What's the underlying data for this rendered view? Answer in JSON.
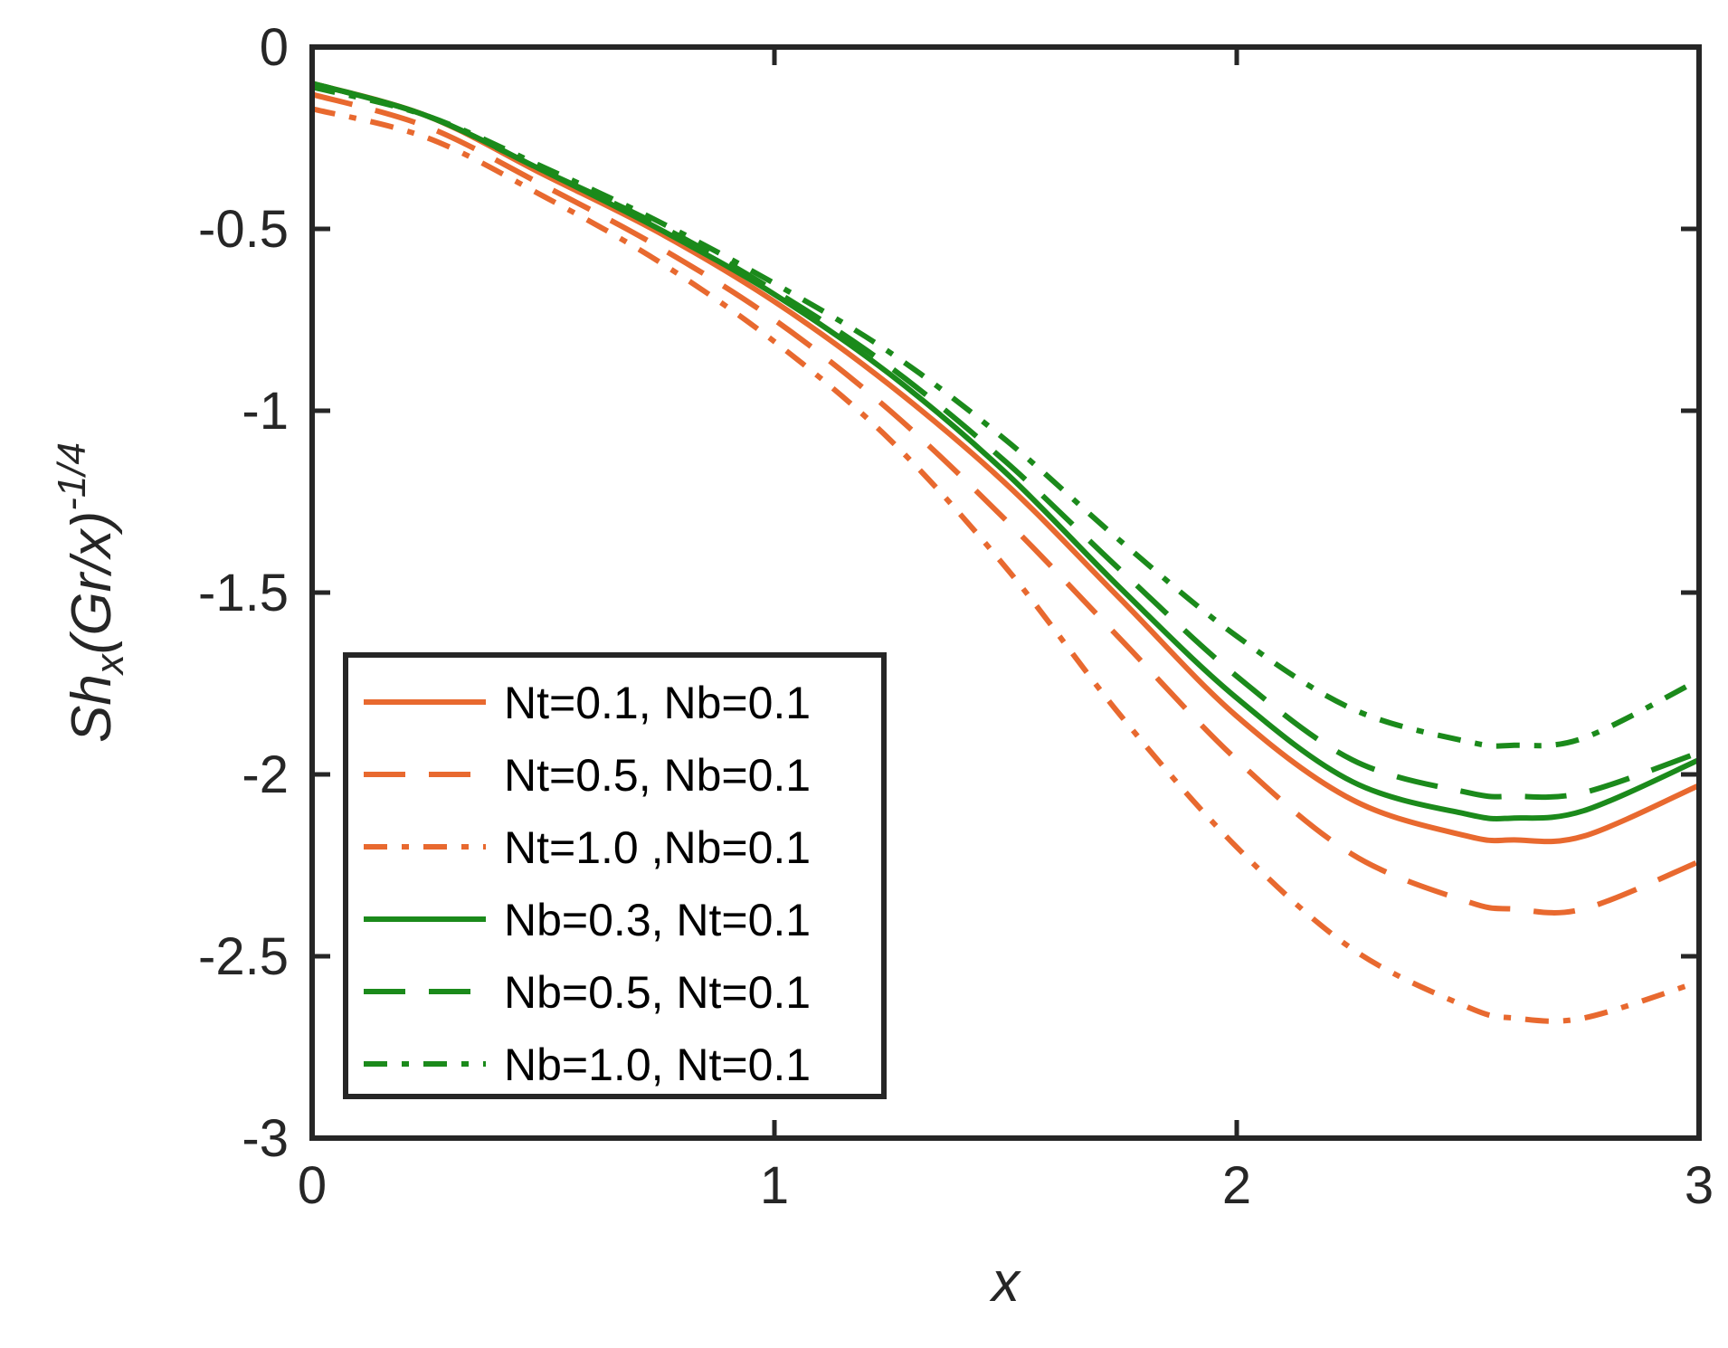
{
  "chart_data": {
    "type": "line",
    "title": "",
    "xlabel": "x",
    "ylabel": {
      "main": "Sh",
      "sub": "x",
      "paren": "(Gr/x)",
      "sup": "-1/4"
    },
    "xlim": [
      0,
      3
    ],
    "ylim": [
      -3,
      0
    ],
    "xticks": [
      0,
      1,
      2,
      3
    ],
    "xtick_labels": [
      "0",
      "1",
      "2",
      "3"
    ],
    "yticks": [
      0,
      -0.5,
      -1,
      -1.5,
      -2,
      -2.5,
      -3
    ],
    "ytick_labels": [
      "0",
      "-0.5",
      "-1",
      "-1.5",
      "-2",
      "-2.5",
      "-3"
    ],
    "grid": false,
    "legend_position": "bottom-left",
    "x": [
      0,
      0.25,
      0.5,
      0.75,
      1.0,
      1.25,
      1.5,
      1.75,
      2.0,
      2.25,
      2.5,
      2.6,
      2.75,
      3.0
    ],
    "series": [
      {
        "name": "Nt=0.1, Nb=0.1",
        "color": "#e8692f",
        "dash": "solid",
        "values": [
          -0.1,
          -0.19,
          -0.35,
          -0.51,
          -0.7,
          -0.93,
          -1.2,
          -1.52,
          -1.84,
          -2.07,
          -2.17,
          -2.18,
          -2.17,
          -2.03
        ]
      },
      {
        "name": "Nt=0.5, Nb=0.1",
        "color": "#e8692f",
        "dash": "dashed",
        "values": [
          -0.13,
          -0.22,
          -0.38,
          -0.55,
          -0.75,
          -1.0,
          -1.3,
          -1.63,
          -1.96,
          -2.22,
          -2.35,
          -2.37,
          -2.37,
          -2.24
        ]
      },
      {
        "name": "Nt=1.0 ,Nb=0.1",
        "color": "#e8692f",
        "dash": "dashdot",
        "values": [
          -0.17,
          -0.25,
          -0.41,
          -0.59,
          -0.81,
          -1.08,
          -1.43,
          -1.84,
          -2.2,
          -2.48,
          -2.64,
          -2.67,
          -2.67,
          -2.57
        ]
      },
      {
        "name": "Nb=0.3, Nt=0.1",
        "color": "#1b8a1b",
        "dash": "solid",
        "values": [
          -0.1,
          -0.19,
          -0.34,
          -0.5,
          -0.68,
          -0.9,
          -1.17,
          -1.49,
          -1.79,
          -2.02,
          -2.11,
          -2.12,
          -2.1,
          -1.96
        ]
      },
      {
        "name": "Nb=0.5, Nt=0.1",
        "color": "#1b8a1b",
        "dash": "dashed",
        "values": [
          -0.1,
          -0.19,
          -0.34,
          -0.49,
          -0.67,
          -0.88,
          -1.14,
          -1.44,
          -1.73,
          -1.96,
          -2.05,
          -2.06,
          -2.05,
          -1.94
        ]
      },
      {
        "name": "Nb=1.0, Nt=0.1",
        "color": "#1b8a1b",
        "dash": "dashdot",
        "values": [
          -0.11,
          -0.19,
          -0.33,
          -0.48,
          -0.65,
          -0.84,
          -1.08,
          -1.36,
          -1.62,
          -1.82,
          -1.91,
          -1.92,
          -1.9,
          -1.74
        ]
      }
    ]
  }
}
